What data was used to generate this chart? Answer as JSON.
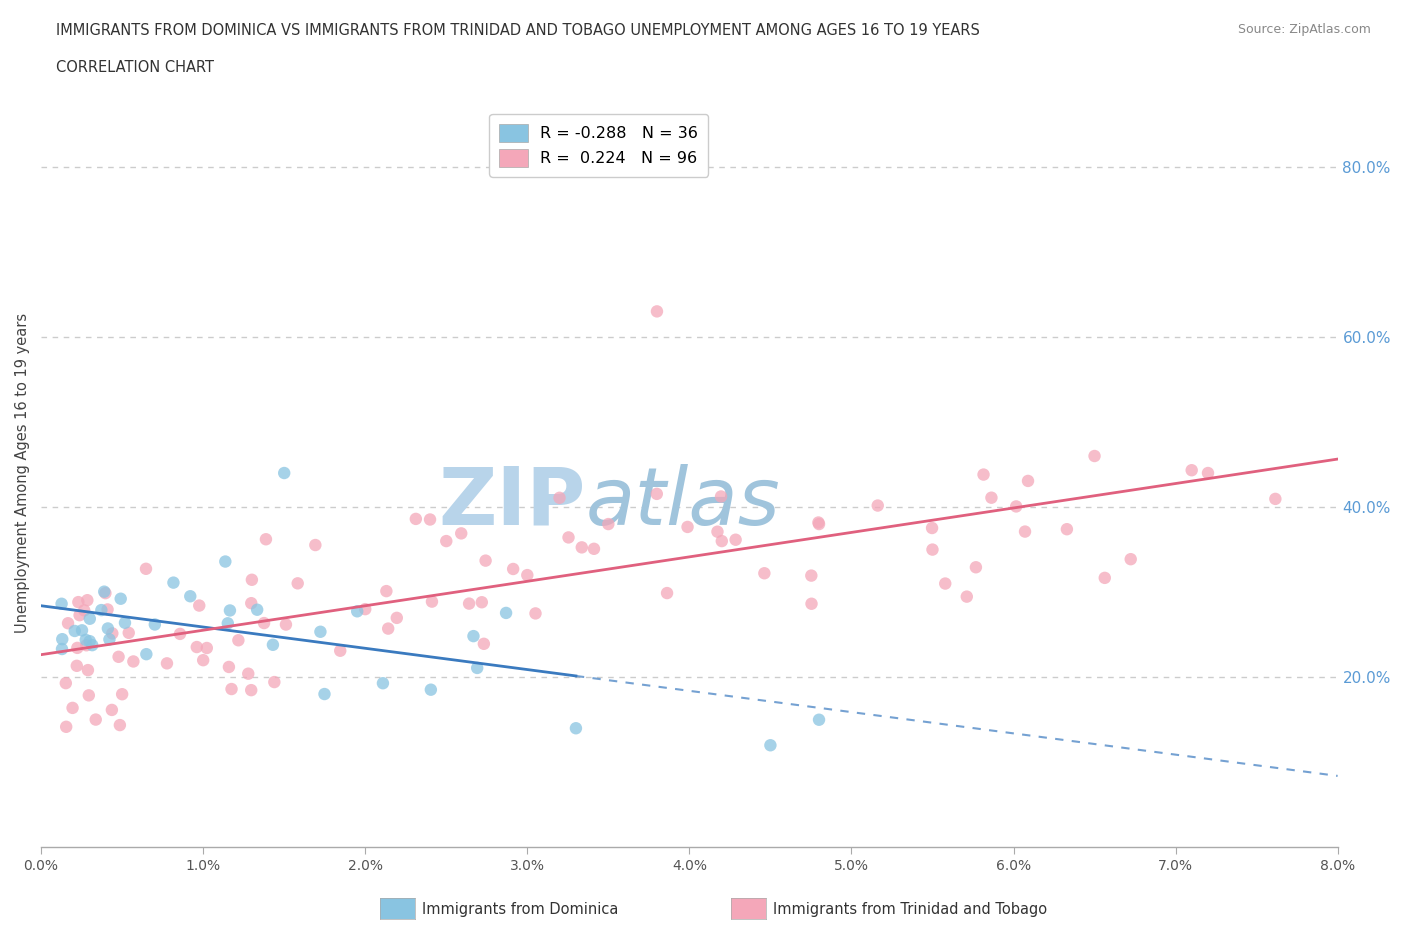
{
  "title_line1": "IMMIGRANTS FROM DOMINICA VS IMMIGRANTS FROM TRINIDAD AND TOBAGO UNEMPLOYMENT AMONG AGES 16 TO 19 YEARS",
  "title_line2": "CORRELATION CHART",
  "source": "Source: ZipAtlas.com",
  "ylabel": "Unemployment Among Ages 16 to 19 years",
  "right_yticks": [
    "80.0%",
    "60.0%",
    "40.0%",
    "20.0%"
  ],
  "right_ytick_vals": [
    0.8,
    0.6,
    0.4,
    0.2
  ],
  "legend_blue_R": -0.288,
  "legend_blue_N": 36,
  "legend_pink_R": 0.224,
  "legend_pink_N": 96,
  "legend_label_blue": "Immigrants from Dominica",
  "legend_label_pink": "Immigrants from Trinidad and Tobago",
  "blue_scatter_color": "#89c4e1",
  "pink_scatter_color": "#f4a7b9",
  "blue_line_color": "#3a7abf",
  "pink_line_color": "#e0607e",
  "watermark": "ZIPAtlas",
  "watermark_color_zip": "#b8d4ea",
  "watermark_color_atlas": "#a8c8dc",
  "xmin": 0.0,
  "xmax": 0.08,
  "ymin": 0.0,
  "ymax": 0.88,
  "background_color": "#ffffff",
  "grid_color": "#cccccc",
  "title_color": "#333333",
  "source_color": "#888888"
}
